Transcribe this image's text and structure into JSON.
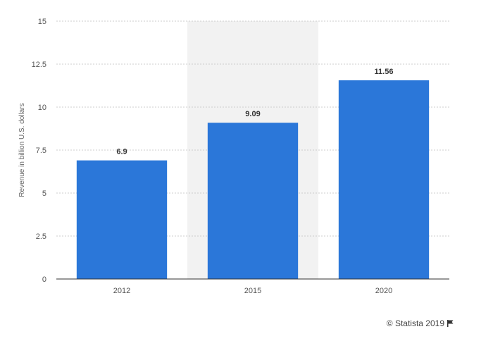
{
  "chart_data": {
    "type": "bar",
    "categories": [
      "2012",
      "2015",
      "2020"
    ],
    "values": [
      6.9,
      9.09,
      11.56
    ],
    "value_labels": [
      "6.9",
      "9.09",
      "11.56"
    ],
    "title": "",
    "xlabel": "",
    "ylabel": "Revenue in billion U.S. dollars",
    "ylim": [
      0,
      15
    ],
    "yticks": [
      "0",
      "2.5",
      "5",
      "7.5",
      "10",
      "12.5",
      "15"
    ],
    "yticks_values": [
      0,
      2.5,
      5,
      7.5,
      10,
      12.5,
      15
    ],
    "grid": true,
    "highlighted_category": "2015",
    "legend": "none",
    "colors": {
      "bar": "#2b77d9",
      "grid": "#cccccc",
      "highlight_band": "#f2f2f2",
      "axis": "#333333"
    }
  },
  "footer": {
    "credit": "© Statista 2019",
    "credit_icon": "flag-icon"
  }
}
